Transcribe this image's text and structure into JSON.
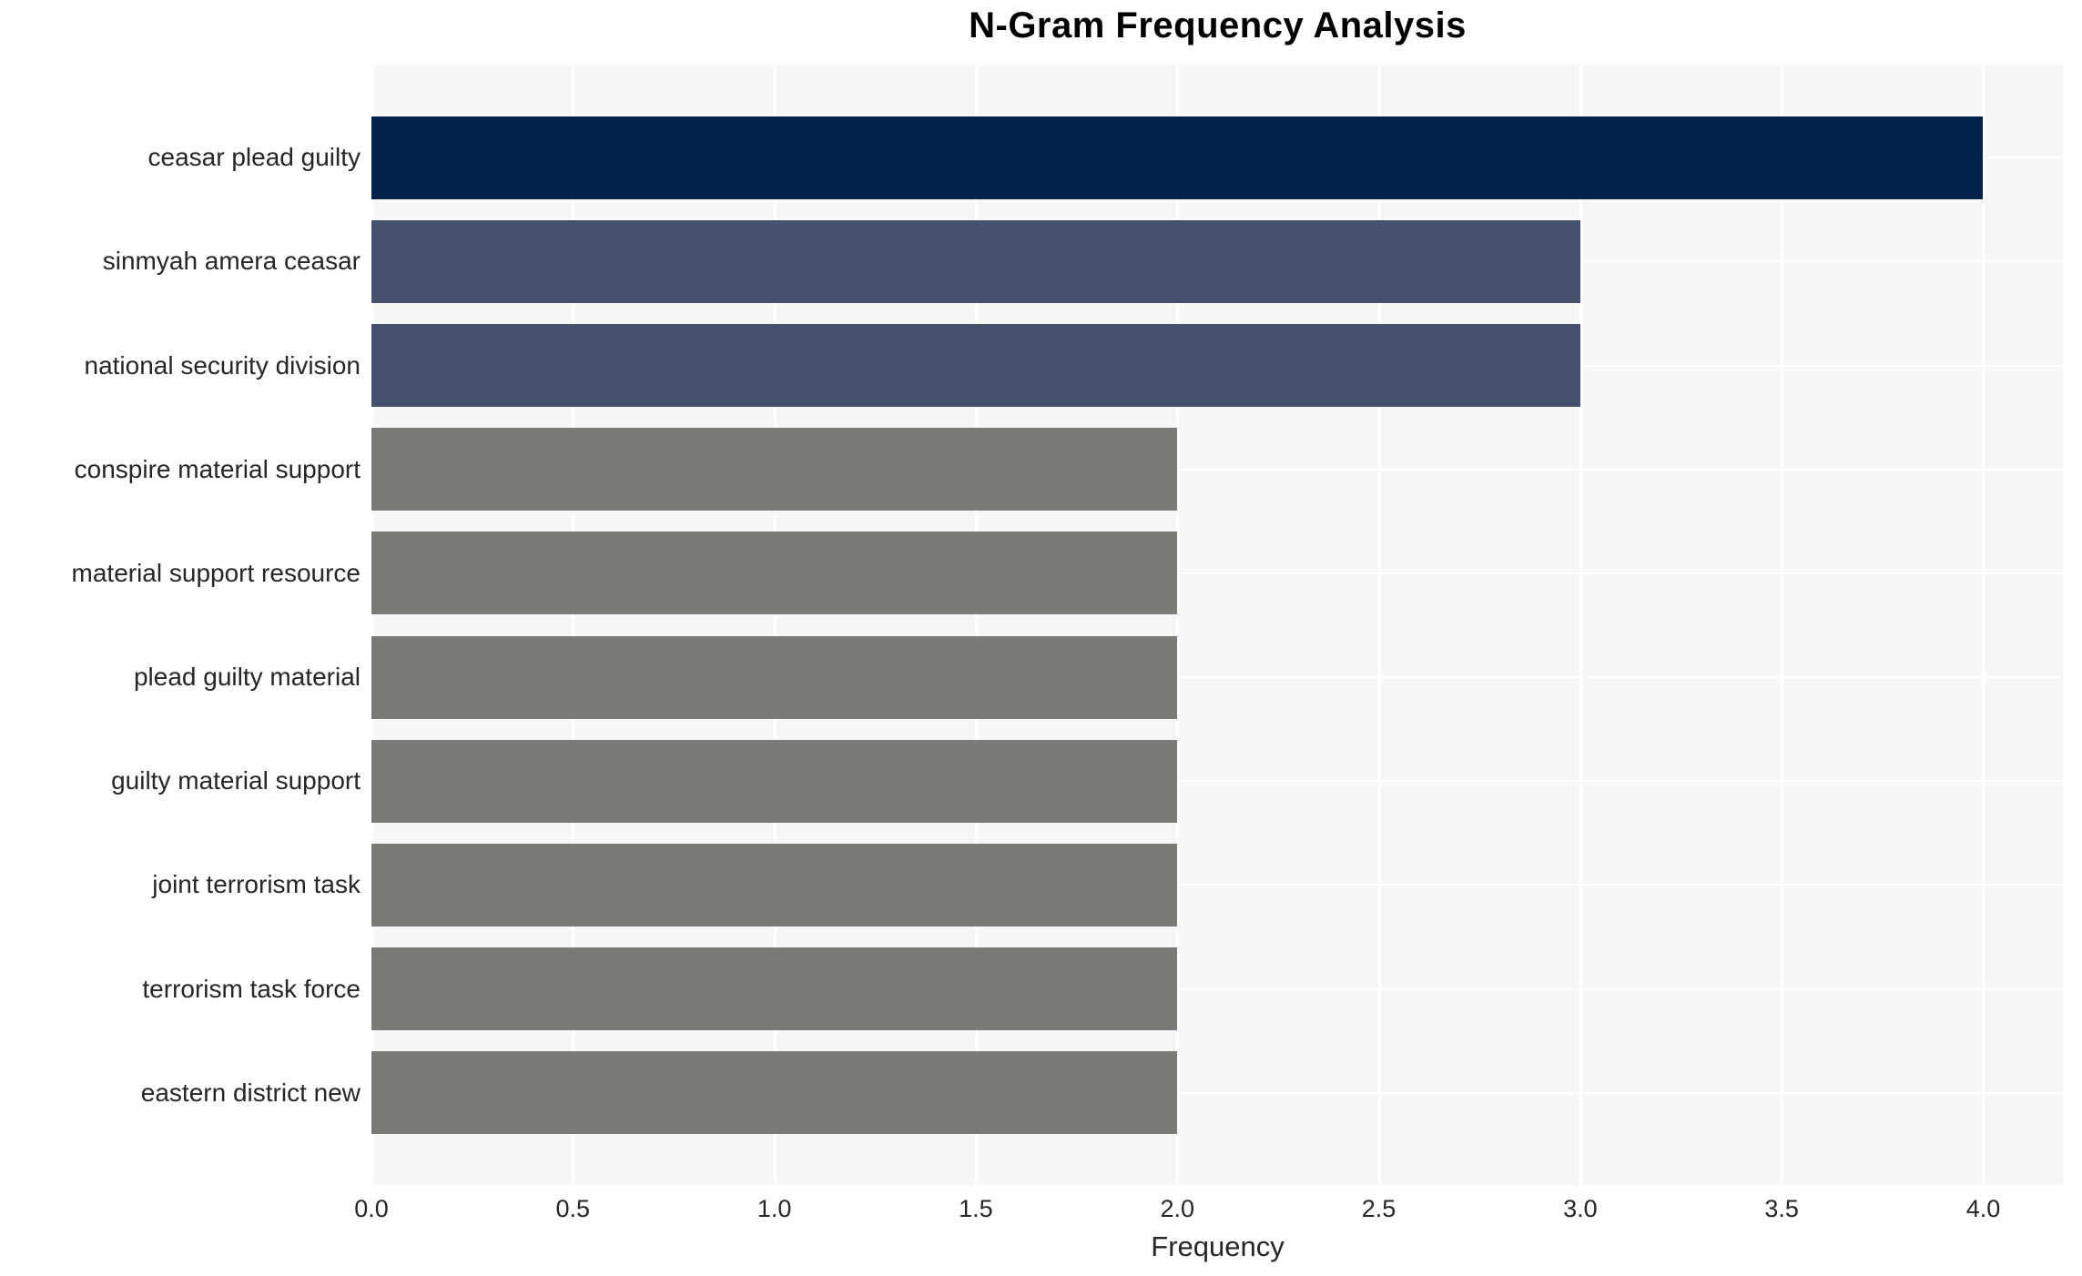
{
  "title": "N-Gram Frequency Analysis",
  "chart_data": {
    "type": "bar",
    "orientation": "horizontal",
    "title": "N-Gram Frequency Analysis",
    "xlabel": "Frequency",
    "ylabel": "",
    "categories": [
      "ceasar plead guilty",
      "sinmyah amera ceasar",
      "national security division",
      "conspire material support",
      "material support resource",
      "plead guilty material",
      "guilty material support",
      "joint terrorism task",
      "terrorism task force",
      "eastern district new"
    ],
    "values": [
      4,
      3,
      3,
      2,
      2,
      2,
      2,
      2,
      2,
      2
    ],
    "bar_colors": [
      "#03234d",
      "#46516e",
      "#46516e",
      "#7a7a77",
      "#7a7a77",
      "#7a7a77",
      "#7a7a77",
      "#7a7a77",
      "#7a7a77",
      "#7a7a77"
    ],
    "xlim": [
      0,
      4.2
    ],
    "xticks": [
      0.0,
      0.5,
      1.0,
      1.5,
      2.0,
      2.5,
      3.0,
      3.5,
      4.0
    ],
    "xtick_labels": [
      "0.0",
      "0.5",
      "1.0",
      "1.5",
      "2.0",
      "2.5",
      "3.0",
      "3.5",
      "4.0"
    ],
    "grid": true,
    "legend": false,
    "plot_bg_color": "#f7f7f7",
    "grid_color": "#ffffff",
    "text_color": "#262626"
  }
}
